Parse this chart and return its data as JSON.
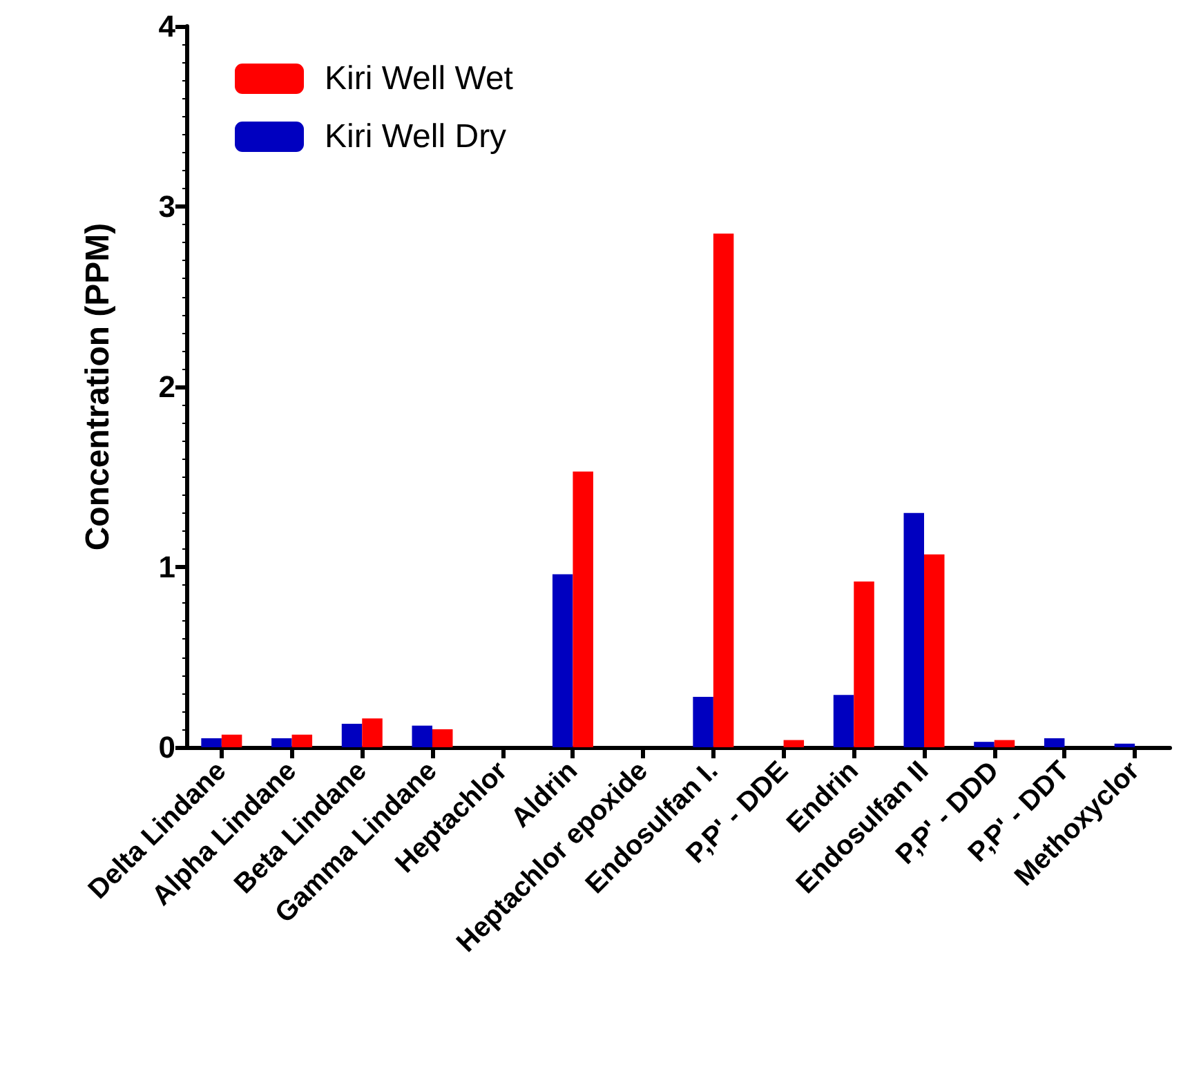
{
  "chart_data": {
    "type": "bar",
    "ylabel": "Concentration (PPM)",
    "categories": [
      "Delta Lindane",
      "Alpha Lindane",
      "Beta Lindane",
      "Gamma Lindane",
      "Heptachlor",
      "Aldrin",
      "Heptachlor epoxide",
      "Endosulfan I.",
      "P,P' - DDE",
      "Endrin",
      "Endosulfan II",
      "P,P' - DDD",
      "P,P' - DDT",
      "Methoxyclor"
    ],
    "series": [
      {
        "name": "Kiri Well Wet",
        "color": "#ff0000",
        "values": [
          0.07,
          0.07,
          0.16,
          0.1,
          0,
          1.53,
          0,
          2.85,
          0.04,
          0.92,
          1.07,
          0.04,
          0,
          0
        ]
      },
      {
        "name": "Kiri Well Dry",
        "color": "#0000c0",
        "values": [
          0.05,
          0.05,
          0.13,
          0.12,
          0,
          0.96,
          0,
          0.28,
          0,
          0.29,
          1.3,
          0.03,
          0.05,
          0.02
        ]
      }
    ],
    "ylim": [
      0,
      4
    ],
    "yticks": [
      0,
      1,
      2,
      3,
      4
    ],
    "grid": false,
    "legend": "top left"
  }
}
